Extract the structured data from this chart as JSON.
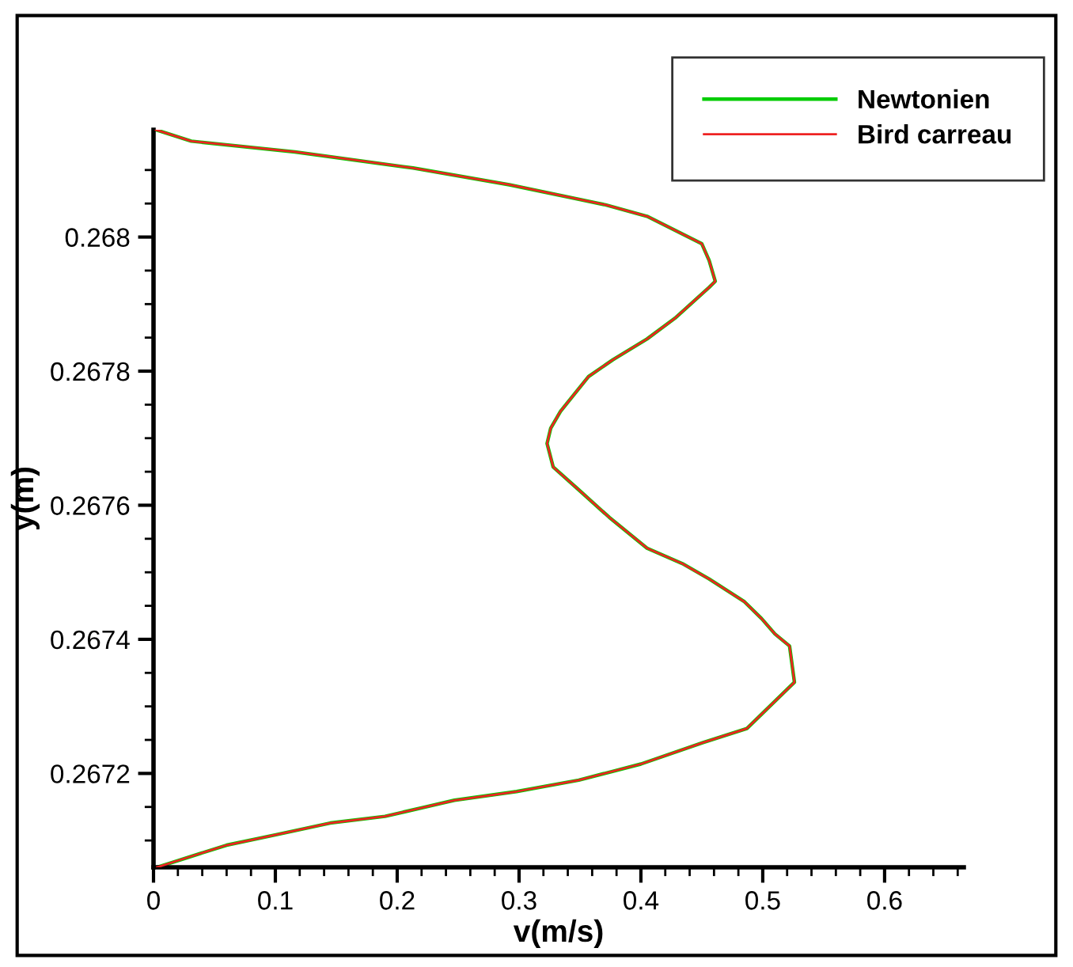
{
  "chart_data": {
    "type": "line",
    "xlabel": "v(m/s)",
    "ylabel": "y(m)",
    "xlim": [
      0,
      0.665
    ],
    "ylim": [
      0.26706,
      0.26816
    ],
    "xticks": [
      0,
      {
        "value": 0.02,
        "label": null
      },
      {
        "value": 0.04,
        "label": null
      },
      {
        "value": 0.06,
        "label": null
      },
      {
        "value": 0.08,
        "label": null
      },
      0.1,
      {
        "value": 0.12,
        "label": null
      },
      {
        "value": 0.14,
        "label": null
      },
      {
        "value": 0.16,
        "label": null
      },
      {
        "value": 0.18,
        "label": null
      },
      0.2,
      {
        "value": 0.22,
        "label": null
      },
      {
        "value": 0.24,
        "label": null
      },
      {
        "value": 0.26,
        "label": null
      },
      {
        "value": 0.28,
        "label": null
      },
      0.3,
      {
        "value": 0.32,
        "label": null
      },
      {
        "value": 0.34,
        "label": null
      },
      {
        "value": 0.36,
        "label": null
      },
      {
        "value": 0.38,
        "label": null
      },
      0.4,
      {
        "value": 0.42,
        "label": null
      },
      {
        "value": 0.44,
        "label": null
      },
      {
        "value": 0.46,
        "label": null
      },
      {
        "value": 0.48,
        "label": null
      },
      0.5,
      {
        "value": 0.52,
        "label": null
      },
      {
        "value": 0.54,
        "label": null
      },
      {
        "value": 0.56,
        "label": null
      },
      {
        "value": 0.58,
        "label": null
      },
      0.6,
      {
        "value": 0.62,
        "label": null
      },
      {
        "value": 0.64,
        "label": null
      },
      {
        "value": 0.66,
        "label": null
      }
    ],
    "yticks": [
      {
        "value": 0.2671,
        "label": null
      },
      {
        "value": 0.26715,
        "label": null
      },
      0.2672,
      {
        "value": 0.26725,
        "label": null
      },
      {
        "value": 0.2673,
        "label": null
      },
      {
        "value": 0.26735,
        "label": null
      },
      0.2674,
      {
        "value": 0.26745,
        "label": null
      },
      {
        "value": 0.2675,
        "label": null
      },
      {
        "value": 0.26755,
        "label": null
      },
      0.2676,
      {
        "value": 0.26765,
        "label": null
      },
      {
        "value": 0.2677,
        "label": null
      },
      {
        "value": 0.26775,
        "label": null
      },
      0.2678,
      {
        "value": 0.26785,
        "label": null
      },
      {
        "value": 0.2679,
        "label": null
      },
      {
        "value": 0.26795,
        "label": null
      },
      0.268,
      {
        "value": 0.26805,
        "label": null
      },
      {
        "value": 0.2681,
        "label": null
      }
    ],
    "grid": false,
    "legend": "top right",
    "marker": "none",
    "line_style": "solid",
    "x": [
      0.002,
      0.031,
      0.116,
      0.213,
      0.292,
      0.371,
      0.405,
      0.45,
      0.456,
      0.461,
      0.456,
      0.428,
      0.405,
      0.377,
      0.357,
      0.334,
      0.326,
      0.323,
      0.328,
      0.349,
      0.374,
      0.405,
      0.434,
      0.456,
      0.485,
      0.499,
      0.51,
      0.522,
      0.526,
      0.487,
      0.451,
      0.4,
      0.349,
      0.298,
      0.247,
      0.19,
      0.145,
      0.099,
      0.06,
      0.02,
      0.003
    ],
    "series": [
      {
        "name": "Newtonien",
        "color": "#00cc00",
        "values": [
          0.26816,
          0.268143,
          0.268127,
          0.268103,
          0.268078,
          0.268048,
          0.268031,
          0.26799,
          0.267965,
          0.267934,
          0.267925,
          0.267879,
          0.267848,
          0.267817,
          0.267792,
          0.26774,
          0.267715,
          0.267692,
          0.267657,
          0.267623,
          0.267582,
          0.267536,
          0.267513,
          0.26749,
          0.267456,
          0.267431,
          0.267408,
          0.26739,
          0.267336,
          0.267267,
          0.267246,
          0.267214,
          0.26719,
          0.267173,
          0.26716,
          0.267136,
          0.267126,
          0.267108,
          0.267093,
          0.26707,
          0.26706
        ]
      },
      {
        "name": "Bird carreau",
        "color": "#ee2222",
        "values": [
          0.26816,
          0.268143,
          0.268127,
          0.268103,
          0.268078,
          0.268048,
          0.268031,
          0.26799,
          0.267965,
          0.267934,
          0.267925,
          0.267879,
          0.267848,
          0.267817,
          0.267792,
          0.26774,
          0.267715,
          0.267692,
          0.267657,
          0.267623,
          0.267582,
          0.267536,
          0.267513,
          0.26749,
          0.267456,
          0.267431,
          0.267408,
          0.26739,
          0.267336,
          0.267267,
          0.267246,
          0.267214,
          0.26719,
          0.267173,
          0.26716,
          0.267136,
          0.267126,
          0.267108,
          0.267093,
          0.26707,
          0.26706
        ]
      }
    ]
  }
}
